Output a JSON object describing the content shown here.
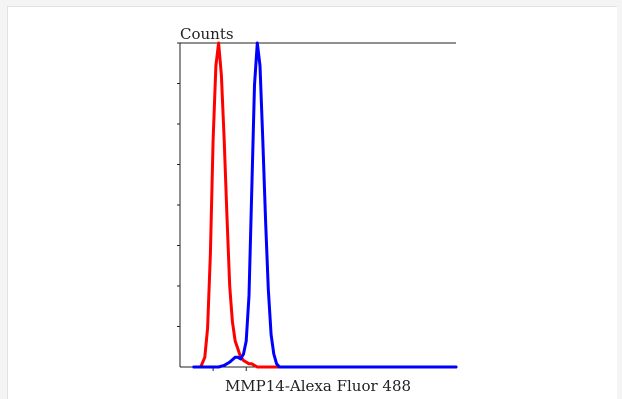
{
  "chart_data": {
    "type": "line",
    "ylabel": "Counts",
    "xlabel": "MMP14-Alexa Fluor 488",
    "xlim": [
      0,
      100
    ],
    "ylim": [
      0,
      100
    ],
    "grid": false,
    "legend": "none",
    "series": [
      {
        "color": "#ff0000",
        "x": [
          5,
          7.5,
          9,
          10,
          11,
          12,
          13,
          14,
          15,
          16,
          17,
          18,
          19,
          20,
          21,
          22,
          23,
          24,
          25,
          26,
          27,
          28,
          30,
          100
        ],
        "y": [
          0,
          0,
          3,
          12,
          35,
          70,
          93,
          100,
          90,
          70,
          47,
          25,
          14,
          8,
          5.5,
          3,
          2,
          1.5,
          1,
          1,
          0.5,
          0,
          0,
          0
        ]
      },
      {
        "color": "#0000ff",
        "x": [
          5,
          14,
          16,
          18,
          20,
          21,
          22,
          23,
          24,
          25,
          26,
          27,
          28,
          29,
          30,
          31,
          32,
          33,
          34,
          35,
          36,
          100
        ],
        "y": [
          0,
          0,
          0.5,
          1.5,
          3,
          3,
          2.5,
          4,
          8,
          22,
          55,
          87,
          100,
          93,
          70,
          45,
          24,
          10,
          4,
          1,
          0,
          0
        ]
      }
    ]
  }
}
